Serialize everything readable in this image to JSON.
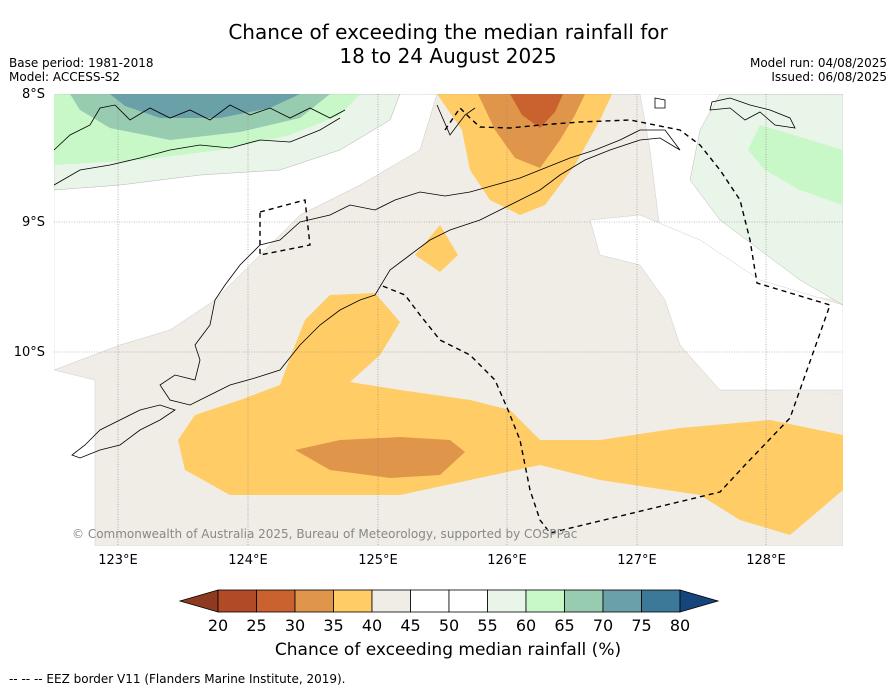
{
  "title_line1": "Chance of exceeding the median rainfall for",
  "title_line2": "18 to 24 August 2025",
  "meta_left": {
    "base_period": "Base period: 1981-2018",
    "model": "Model: ACCESS-S2"
  },
  "meta_right": {
    "model_run": "Model run: 04/08/2025",
    "issued": "Issued: 06/08/2025"
  },
  "lat_labels": [
    "8°S",
    "9°S",
    "10°S"
  ],
  "lon_labels": [
    "123°E",
    "124°E",
    "125°E",
    "126°E",
    "127°E",
    "128°E"
  ],
  "copyright": "© Commonwealth of Australia 2025, Bureau of Meteorology, supported by COSPPac",
  "colorbar": {
    "ticks": [
      "20",
      "25",
      "30",
      "35",
      "40",
      "45",
      "50",
      "55",
      "60",
      "65",
      "70",
      "75",
      "80"
    ],
    "label": "Chance of exceeding median rainfall (%)",
    "colors": [
      "#8e3a20",
      "#b14a26",
      "#c9622f",
      "#e0964a",
      "#ffcc66",
      "#f0ece6",
      "#ffffff",
      "#ffffff",
      "#e8f5e8",
      "#c8f7c8",
      "#98ccb0",
      "#6aa0a8",
      "#3c7898",
      "#15457a"
    ]
  },
  "legend_note": "-- -- -- EEZ border V11 (Flanders Marine Institute, 2019).",
  "map_layers": {
    "beige_level": "40-45",
    "orange_level": "35-40",
    "dark_orange_level": "30-35",
    "red_orange_level": "25-30",
    "light_green_level": "55-60",
    "green_level": "60-65",
    "teal_level": "65-70",
    "dark_teal_level": "70-75"
  }
}
